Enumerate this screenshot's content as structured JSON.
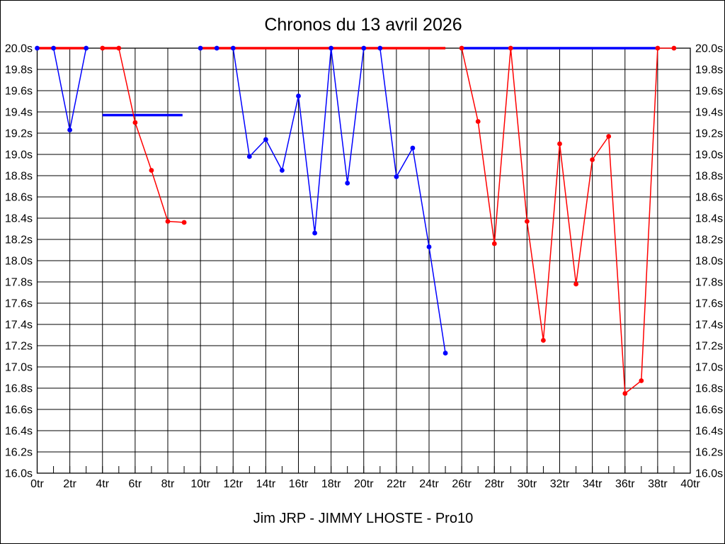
{
  "window": {
    "title_text": "Chronos du 13 avril 2026",
    "footer_text": "Jim JRP - JIMMY LHOSTE - Pro10",
    "background_color": "#ffffff",
    "frame_color": "#000000"
  },
  "chart_data": {
    "type": "line",
    "title": "Chronos du 13 avril 2026",
    "subtitle": "Jim JRP - JIMMY LHOSTE - Pro10",
    "x_unit": "tr",
    "y_unit": "s",
    "xlim": [
      0,
      40
    ],
    "ylim": [
      16.0,
      20.0
    ],
    "x_gridline_step": 2,
    "x_minor_tick_step": 1,
    "y_gridline_step": 0.2,
    "grid_on": true,
    "legend": "none",
    "x_tick_labels": [
      "0tr",
      "2tr",
      "4tr",
      "6tr",
      "8tr",
      "10tr",
      "12tr",
      "14tr",
      "16tr",
      "18tr",
      "20tr",
      "22tr",
      "24tr",
      "26tr",
      "28tr",
      "30tr",
      "32tr",
      "34tr",
      "36tr",
      "38tr",
      "40tr"
    ],
    "y_tick_labels": [
      "20.0s",
      "19.8s",
      "19.6s",
      "19.4s",
      "19.2s",
      "19.0s",
      "18.8s",
      "18.6s",
      "18.4s",
      "18.2s",
      "18.0s",
      "17.8s",
      "17.6s",
      "17.4s",
      "17.2s",
      "17.0s",
      "16.8s",
      "16.6s",
      "16.4s",
      "16.2s",
      "16.0s"
    ],
    "series": [
      {
        "name": "blue-series",
        "color": "#0000ff",
        "segments": [
          {
            "style": "thin",
            "width": 1.5,
            "markers": true,
            "points": [
              [
                0,
                20.0
              ],
              [
                1,
                20.0
              ],
              [
                2,
                19.23
              ],
              [
                3,
                20.0
              ]
            ]
          },
          {
            "style": "thin",
            "width": 1.5,
            "markers": true,
            "points": [
              [
                10,
                20.0
              ],
              [
                11,
                20.0
              ],
              [
                12,
                20.0
              ],
              [
                13,
                18.98
              ],
              [
                14,
                19.14
              ],
              [
                15,
                18.85
              ],
              [
                16,
                19.55
              ],
              [
                17,
                18.26
              ],
              [
                18,
                20.0
              ],
              [
                19,
                18.73
              ],
              [
                20,
                20.0
              ],
              [
                21,
                20.0
              ],
              [
                22,
                18.79
              ],
              [
                23,
                19.06
              ],
              [
                24,
                18.13
              ],
              [
                25,
                17.13
              ]
            ]
          },
          {
            "style": "thick",
            "width": 3.5,
            "markers": false,
            "points": [
              [
                4,
                19.37
              ],
              [
                8.9,
                19.37
              ]
            ]
          },
          {
            "style": "thick",
            "width": 3.5,
            "markers": false,
            "points": [
              [
                26,
                20.0
              ],
              [
                38,
                20.0
              ]
            ]
          }
        ]
      },
      {
        "name": "red-series",
        "color": "#ff0000",
        "segments": [
          {
            "style": "thick",
            "width": 3.5,
            "markers": false,
            "points": [
              [
                0,
                20.0
              ],
              [
                3,
                20.0
              ]
            ]
          },
          {
            "style": "thin",
            "width": 1.5,
            "markers": true,
            "points": [
              [
                4,
                20.0
              ],
              [
                5,
                20.0
              ],
              [
                6,
                19.3
              ],
              [
                7,
                18.85
              ],
              [
                8,
                18.37
              ],
              [
                9,
                18.36
              ]
            ]
          },
          {
            "style": "thick",
            "width": 3.5,
            "markers": false,
            "points": [
              [
                4,
                20.0
              ],
              [
                5,
                20.0
              ]
            ]
          },
          {
            "style": "thick",
            "width": 3.5,
            "markers": false,
            "points": [
              [
                10,
                20.0
              ],
              [
                25,
                20.0
              ]
            ]
          },
          {
            "style": "thin",
            "width": 1.5,
            "markers": true,
            "points": [
              [
                26,
                20.0
              ],
              [
                27,
                19.31
              ],
              [
                28,
                18.16
              ],
              [
                29,
                20.0
              ],
              [
                30,
                18.37
              ],
              [
                31,
                17.25
              ],
              [
                32,
                19.1
              ],
              [
                33,
                17.78
              ],
              [
                34,
                18.95
              ],
              [
                35,
                19.17
              ],
              [
                36,
                16.75
              ],
              [
                37,
                16.87
              ],
              [
                38,
                20.0
              ],
              [
                39,
                20.0
              ]
            ]
          }
        ]
      }
    ]
  }
}
